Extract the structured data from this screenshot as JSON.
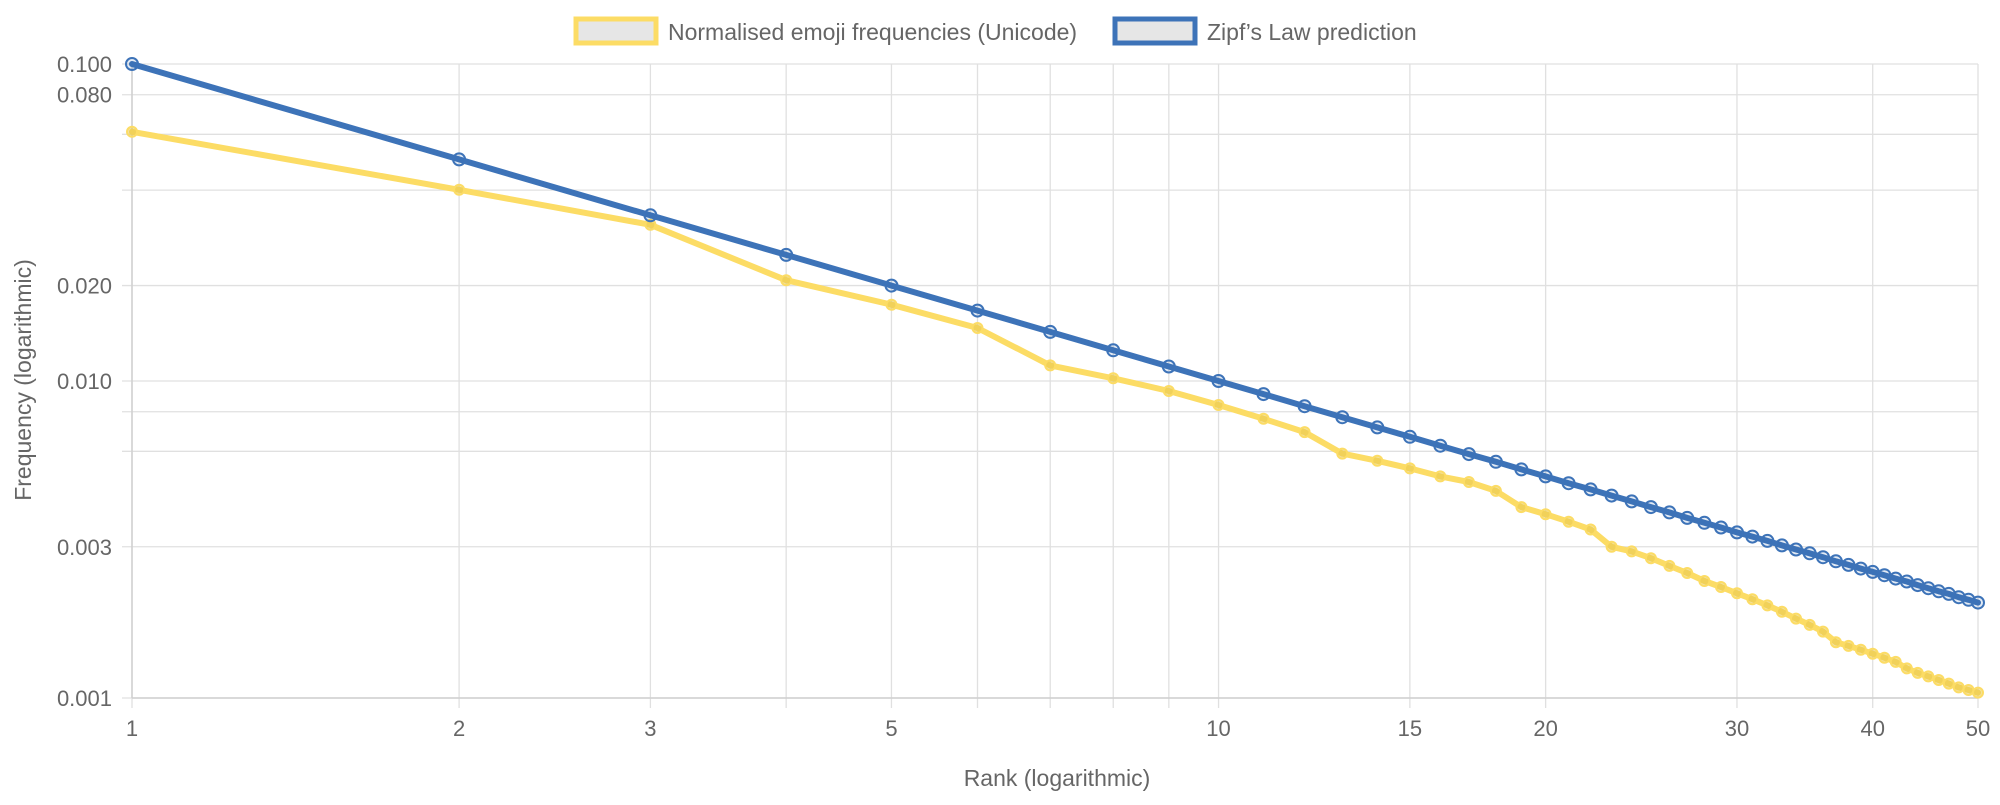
{
  "chart_data": {
    "type": "line",
    "xlabel": "Rank (logarithmic)",
    "ylabel": "Frequency (logarithmic)",
    "x_scale": "log",
    "y_scale": "log",
    "xlim": [
      1,
      50
    ],
    "ylim": [
      0.001,
      0.1
    ],
    "grid": true,
    "legend_position": "top",
    "x_ticks": [
      {
        "value": 1,
        "label": "1"
      },
      {
        "value": 2,
        "label": "2"
      },
      {
        "value": 3,
        "label": "3"
      },
      {
        "value": 4,
        "label": ""
      },
      {
        "value": 5,
        "label": "5"
      },
      {
        "value": 6,
        "label": ""
      },
      {
        "value": 7,
        "label": ""
      },
      {
        "value": 8,
        "label": ""
      },
      {
        "value": 9,
        "label": ""
      },
      {
        "value": 10,
        "label": "10"
      },
      {
        "value": 15,
        "label": "15"
      },
      {
        "value": 20,
        "label": "20"
      },
      {
        "value": 30,
        "label": "30"
      },
      {
        "value": 40,
        "label": "40"
      },
      {
        "value": 50,
        "label": "50"
      }
    ],
    "y_ticks": [
      {
        "value": 0.1,
        "label": "0.100"
      },
      {
        "value": 0.08,
        "label": "0.080"
      },
      {
        "value": 0.06,
        "label": ""
      },
      {
        "value": 0.04,
        "label": ""
      },
      {
        "value": 0.02,
        "label": "0.020"
      },
      {
        "value": 0.01,
        "label": "0.010"
      },
      {
        "value": 0.008,
        "label": ""
      },
      {
        "value": 0.006,
        "label": ""
      },
      {
        "value": 0.003,
        "label": "0.003"
      },
      {
        "value": 0.001,
        "label": "0.001"
      }
    ],
    "x": [
      1,
      2,
      3,
      4,
      5,
      6,
      7,
      8,
      9,
      10,
      11,
      12,
      13,
      14,
      15,
      16,
      17,
      18,
      19,
      20,
      21,
      22,
      23,
      24,
      25,
      26,
      27,
      28,
      29,
      30,
      31,
      32,
      33,
      34,
      35,
      36,
      37,
      38,
      39,
      40,
      41,
      42,
      43,
      44,
      45,
      46,
      47,
      48,
      49,
      50
    ],
    "series": [
      {
        "name": "Normalised emoji frequencies (Unicode)",
        "color": "#fcdc65",
        "values": [
          0.0611,
          0.0401,
          0.0311,
          0.0208,
          0.0174,
          0.0147,
          0.0112,
          0.0102,
          0.0093,
          0.0084,
          0.0076,
          0.0069,
          0.0059,
          0.0056,
          0.0053,
          0.005,
          0.0048,
          0.0045,
          0.004,
          0.0038,
          0.0036,
          0.0034,
          0.003,
          0.0029,
          0.00276,
          0.00261,
          0.00248,
          0.00234,
          0.00224,
          0.00214,
          0.00205,
          0.00196,
          0.00187,
          0.00178,
          0.0017,
          0.00162,
          0.0015,
          0.00146,
          0.00142,
          0.00138,
          0.00134,
          0.0013,
          0.00124,
          0.0012,
          0.00117,
          0.00114,
          0.00111,
          0.00108,
          0.00106,
          0.00104
        ]
      },
      {
        "name": "Zipf’s Law prediction",
        "color": "#3d73b8",
        "values": [
          0.1,
          0.05,
          0.03333,
          0.025,
          0.02,
          0.01667,
          0.01429,
          0.0125,
          0.01111,
          0.01,
          0.00909,
          0.00833,
          0.00769,
          0.00714,
          0.00667,
          0.00625,
          0.00588,
          0.00556,
          0.00526,
          0.005,
          0.00476,
          0.00455,
          0.00435,
          0.00417,
          0.004,
          0.00385,
          0.0037,
          0.00357,
          0.00345,
          0.00333,
          0.00323,
          0.00313,
          0.00303,
          0.00294,
          0.00286,
          0.00278,
          0.0027,
          0.00263,
          0.00256,
          0.0025,
          0.00244,
          0.00238,
          0.00233,
          0.00227,
          0.00222,
          0.00217,
          0.00213,
          0.00208,
          0.00204,
          0.002
        ]
      }
    ]
  }
}
